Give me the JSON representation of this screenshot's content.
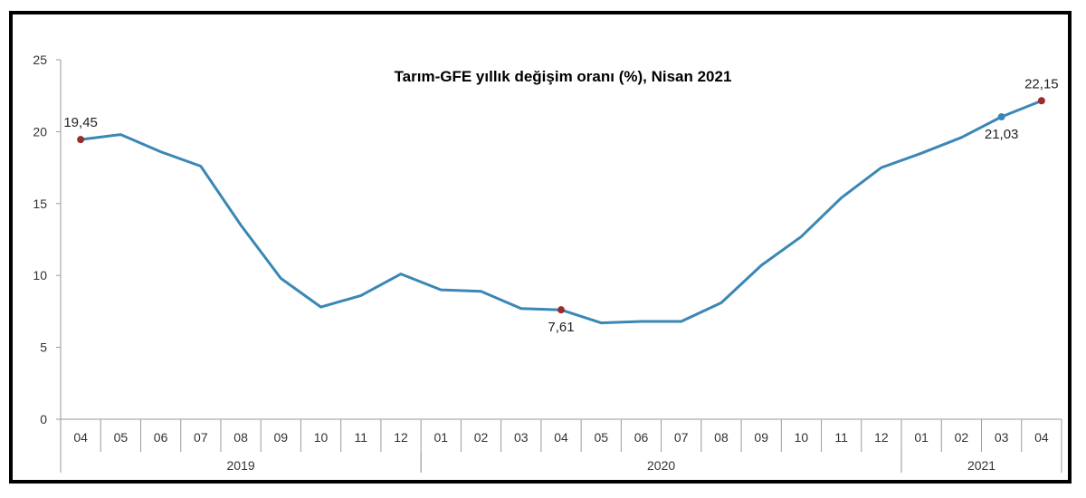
{
  "chart_data": {
    "type": "line",
    "title": "Tarım-GFE yıllık değişim oranı (%), Nisan 2021",
    "xlabel": "",
    "ylabel": "",
    "ylim": [
      0,
      25
    ],
    "yticks": [
      "0",
      "5",
      "10",
      "15",
      "20",
      "25"
    ],
    "categories": [
      "04",
      "05",
      "06",
      "07",
      "08",
      "09",
      "10",
      "11",
      "12",
      "01",
      "02",
      "03",
      "04",
      "05",
      "06",
      "07",
      "08",
      "09",
      "10",
      "11",
      "12",
      "01",
      "02",
      "03",
      "04"
    ],
    "year_groups": [
      {
        "label": "2019",
        "start": 0,
        "end": 8
      },
      {
        "label": "2020",
        "start": 9,
        "end": 20
      },
      {
        "label": "2021",
        "start": 21,
        "end": 24
      }
    ],
    "series": [
      {
        "color": "#3a87b6",
        "values": [
          19.45,
          19.8,
          18.6,
          17.6,
          13.5,
          9.8,
          7.8,
          8.6,
          10.1,
          9.0,
          8.9,
          7.7,
          7.61,
          6.7,
          6.8,
          6.8,
          8.1,
          10.7,
          12.7,
          15.4,
          17.5,
          18.5,
          19.6,
          21.03,
          22.15
        ]
      }
    ],
    "highlights": [
      {
        "index": 0,
        "label": "19,45",
        "color": "#9b2c2c",
        "position": "above"
      },
      {
        "index": 12,
        "label": "7,61",
        "color": "#9b2c2c",
        "position": "below"
      },
      {
        "index": 23,
        "label": "21,03",
        "color": "#3a87b6",
        "position": "below"
      },
      {
        "index": 24,
        "label": "22,15",
        "color": "#9b2c2c",
        "position": "above"
      }
    ],
    "grid": false,
    "legend": "none"
  }
}
